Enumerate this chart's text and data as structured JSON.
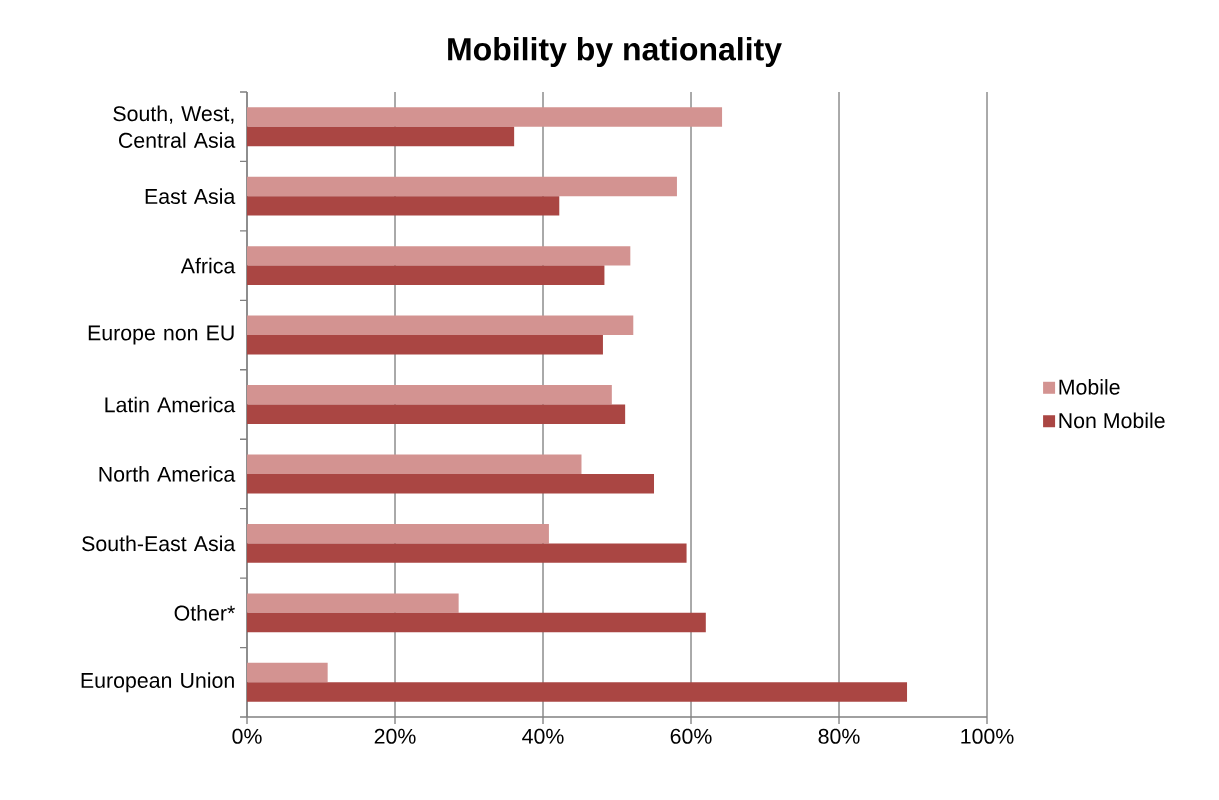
{
  "chart_data": {
    "type": "bar",
    "orientation": "horizontal",
    "title": "Mobility by nationality",
    "categories": [
      "South, West, Central Asia",
      "East Asia",
      "Africa",
      "Europe non EU",
      "Latin America",
      "North America",
      "South-East Asia",
      "Other*",
      "European Union"
    ],
    "series": [
      {
        "name": "Mobile",
        "color": "#d39391",
        "values": [
          64.2,
          58.1,
          51.8,
          52.2,
          49.3,
          45.2,
          40.8,
          28.6,
          10.9
        ]
      },
      {
        "name": "Non Mobile",
        "color": "#aa4643",
        "values": [
          36.1,
          42.2,
          48.3,
          48.1,
          51.1,
          55.0,
          59.4,
          62.0,
          89.2
        ]
      }
    ],
    "xlim": [
      0,
      100
    ],
    "xticks": [
      {
        "value": 0,
        "label": "0%"
      },
      {
        "value": 20,
        "label": "20%"
      },
      {
        "value": 40,
        "label": "40%"
      },
      {
        "value": 60,
        "label": "60%"
      },
      {
        "value": 80,
        "label": "80%"
      },
      {
        "value": 100,
        "label": "100%"
      }
    ],
    "grid": "x",
    "legend": "right"
  }
}
